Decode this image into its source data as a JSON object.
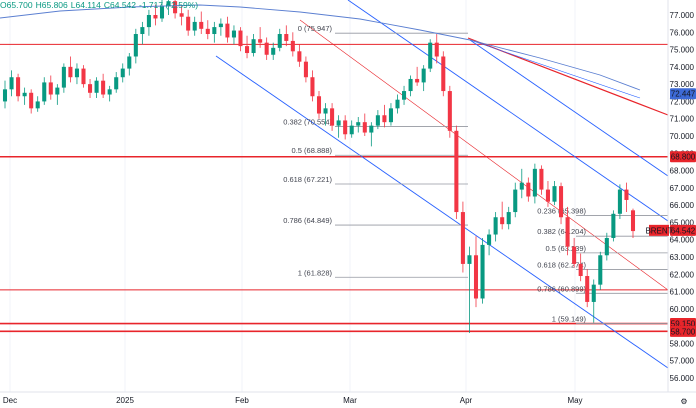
{
  "ohlc_bar": {
    "open": "O65.700",
    "high": "H65.806",
    "low": "L64.114",
    "close": "C64.542",
    "change": "-1.717 (-2.59%)"
  },
  "colors": {
    "up": "#089981",
    "down": "#f23645",
    "channel": "#2962ff",
    "level_red": "#e8252b",
    "ma": "#5b7fd1",
    "fib": "#9598a1",
    "axis_label_dark": "#131722",
    "price_tag_blue": "#3d6ad6"
  },
  "chart_data": {
    "type": "candlestick",
    "instrument_tag": "BRENT",
    "ylim": [
      55.5,
      77.5
    ],
    "y_ticks": [
      "77.000",
      "76.000",
      "75.000",
      "74.000",
      "73.000",
      "72.000",
      "71.000",
      "70.000",
      "69.000",
      "68.000",
      "67.000",
      "66.000",
      "65.000",
      "64.000",
      "63.000",
      "62.000",
      "61.000",
      "60.000",
      "59.000",
      "58.000",
      "57.000",
      "56.000"
    ],
    "x_ticks": [
      "Dec",
      "2025",
      "Feb",
      "Mar",
      "Apr",
      "May"
    ],
    "price_labels": [
      {
        "text": "72.447",
        "value": 72.447,
        "style": "blue"
      },
      {
        "text": "68.800",
        "value": 68.8,
        "style": "red"
      },
      {
        "text": "64.542",
        "value": 64.542,
        "style": "red"
      },
      {
        "text": "59.150",
        "value": 59.15,
        "style": "red"
      },
      {
        "text": "58.700",
        "value": 58.7,
        "style": "red"
      }
    ],
    "horizontal_levels": [
      75.3,
      68.8,
      59.15,
      58.7,
      61.1
    ],
    "fib_big": [
      {
        "label": "0 (75.947)",
        "value": 75.947
      },
      {
        "label": "0.382 (70.554)",
        "value": 70.554
      },
      {
        "label": "0.5 (68.888)",
        "value": 68.888
      },
      {
        "label": "0.618 (67.221)",
        "value": 67.221
      },
      {
        "label": "0.786 (64.849)",
        "value": 64.849
      },
      {
        "label": "1 (61.828)",
        "value": 61.828
      }
    ],
    "fib_small": [
      {
        "label": "0.236 (65.398)",
        "value": 65.398
      },
      {
        "label": "0.382 (64.204)",
        "value": 64.204
      },
      {
        "label": "0.5 (63.239)",
        "value": 63.239
      },
      {
        "label": "0.618 (62.274)",
        "value": 62.274
      },
      {
        "label": "0.786 (60.899)",
        "value": 60.899
      },
      {
        "label": "1 (59.149)",
        "value": 59.149
      }
    ],
    "candles": [
      [
        72.0,
        73.2,
        71.6,
        72.7
      ],
      [
        72.7,
        73.8,
        72.3,
        73.4
      ],
      [
        73.4,
        73.6,
        72.0,
        72.3
      ],
      [
        72.3,
        72.8,
        71.8,
        72.5
      ],
      [
        72.5,
        72.7,
        71.3,
        71.6
      ],
      [
        71.6,
        72.3,
        71.4,
        72.0
      ],
      [
        72.0,
        73.4,
        71.8,
        73.1
      ],
      [
        73.1,
        73.5,
        72.1,
        72.4
      ],
      [
        72.4,
        73.0,
        71.8,
        72.8
      ],
      [
        72.8,
        74.2,
        72.5,
        74.0
      ],
      [
        74.0,
        74.6,
        73.1,
        73.4
      ],
      [
        73.4,
        74.2,
        73.0,
        73.9
      ],
      [
        73.9,
        74.1,
        72.8,
        73.0
      ],
      [
        73.0,
        73.3,
        72.2,
        72.5
      ],
      [
        72.5,
        73.4,
        72.2,
        73.2
      ],
      [
        73.2,
        73.6,
        72.2,
        72.4
      ],
      [
        72.4,
        72.9,
        72.0,
        72.7
      ],
      [
        72.7,
        73.7,
        72.5,
        73.4
      ],
      [
        73.4,
        74.2,
        73.1,
        73.9
      ],
      [
        73.9,
        74.8,
        73.5,
        74.6
      ],
      [
        74.6,
        76.2,
        74.2,
        75.9
      ],
      [
        75.9,
        76.6,
        75.3,
        76.3
      ],
      [
        76.3,
        77.3,
        75.8,
        77.0
      ],
      [
        77.0,
        77.6,
        76.4,
        76.8
      ],
      [
        76.8,
        77.9,
        76.6,
        77.5
      ],
      [
        77.5,
        78.2,
        77.0,
        77.8
      ],
      [
        77.8,
        78.0,
        76.8,
        77.1
      ],
      [
        77.1,
        77.6,
        76.4,
        76.9
      ],
      [
        76.9,
        77.3,
        75.8,
        76.1
      ],
      [
        76.1,
        76.9,
        75.8,
        76.6
      ],
      [
        76.6,
        77.2,
        75.9,
        76.2
      ],
      [
        76.2,
        76.7,
        75.6,
        75.9
      ],
      [
        75.9,
        76.6,
        75.4,
        76.3
      ],
      [
        76.3,
        76.8,
        75.8,
        76.5
      ],
      [
        76.5,
        76.9,
        75.4,
        75.7
      ],
      [
        75.7,
        76.4,
        75.3,
        76.1
      ],
      [
        76.1,
        76.3,
        74.9,
        75.2
      ],
      [
        75.2,
        75.8,
        74.5,
        74.8
      ],
      [
        74.8,
        75.9,
        74.6,
        75.6
      ],
      [
        75.6,
        76.3,
        75.1,
        75.4
      ],
      [
        75.4,
        75.7,
        74.4,
        74.7
      ],
      [
        74.7,
        75.4,
        74.4,
        75.1
      ],
      [
        75.1,
        76.2,
        74.9,
        75.9
      ],
      [
        75.9,
        76.4,
        75.2,
        75.5
      ],
      [
        75.5,
        76.0,
        74.6,
        74.9
      ],
      [
        74.9,
        75.3,
        74.0,
        74.3
      ],
      [
        74.3,
        74.6,
        73.1,
        73.4
      ],
      [
        73.4,
        73.8,
        72.0,
        72.3
      ],
      [
        72.3,
        72.6,
        71.0,
        71.3
      ],
      [
        71.3,
        71.9,
        70.6,
        71.6
      ],
      [
        71.6,
        71.9,
        70.3,
        70.6
      ],
      [
        70.6,
        71.2,
        69.9,
        70.9
      ],
      [
        70.9,
        71.2,
        69.8,
        70.1
      ],
      [
        70.1,
        70.9,
        69.9,
        70.6
      ],
      [
        70.6,
        71.1,
        70.2,
        70.8
      ],
      [
        70.8,
        71.3,
        70.0,
        70.2
      ],
      [
        70.2,
        70.8,
        69.4,
        70.6
      ],
      [
        70.6,
        71.5,
        70.4,
        71.2
      ],
      [
        71.2,
        71.8,
        70.5,
        70.8
      ],
      [
        70.8,
        71.9,
        70.6,
        71.6
      ],
      [
        71.6,
        72.4,
        71.3,
        72.1
      ],
      [
        72.1,
        72.9,
        71.8,
        72.6
      ],
      [
        72.6,
        73.5,
        72.3,
        73.3
      ],
      [
        73.3,
        74.0,
        72.9,
        73.1
      ],
      [
        73.1,
        74.1,
        72.6,
        73.9
      ],
      [
        73.9,
        75.6,
        73.7,
        75.4
      ],
      [
        75.4,
        75.9,
        74.2,
        74.6
      ],
      [
        74.6,
        74.9,
        72.3,
        72.6
      ],
      [
        72.6,
        72.9,
        69.9,
        70.3
      ],
      [
        70.3,
        70.6,
        65.2,
        65.6
      ],
      [
        65.6,
        66.2,
        62.1,
        62.6
      ],
      [
        62.6,
        63.6,
        58.6,
        63.1
      ],
      [
        63.1,
        64.2,
        60.1,
        60.6
      ],
      [
        60.6,
        64.1,
        60.3,
        63.7
      ],
      [
        63.7,
        64.6,
        63.1,
        64.3
      ],
      [
        64.3,
        65.6,
        63.9,
        65.3
      ],
      [
        65.3,
        66.2,
        64.6,
        64.9
      ],
      [
        64.9,
        65.9,
        64.6,
        65.6
      ],
      [
        65.6,
        67.3,
        65.3,
        66.9
      ],
      [
        66.9,
        68.1,
        66.4,
        67.3
      ],
      [
        67.3,
        67.6,
        66.2,
        66.5
      ],
      [
        66.5,
        68.4,
        66.1,
        68.1
      ],
      [
        68.1,
        68.3,
        66.6,
        66.9
      ],
      [
        66.9,
        67.4,
        65.9,
        66.2
      ],
      [
        66.2,
        67.4,
        66.0,
        67.1
      ],
      [
        67.1,
        67.3,
        64.9,
        65.3
      ],
      [
        65.3,
        65.9,
        63.1,
        63.6
      ],
      [
        63.6,
        64.1,
        62.4,
        62.6
      ],
      [
        62.6,
        63.2,
        61.6,
        61.9
      ],
      [
        61.9,
        62.3,
        60.1,
        60.4
      ],
      [
        60.4,
        61.7,
        59.2,
        61.4
      ],
      [
        61.4,
        63.3,
        61.1,
        63.1
      ],
      [
        63.1,
        64.4,
        62.8,
        64.1
      ],
      [
        64.1,
        65.7,
        63.9,
        65.5
      ],
      [
        65.5,
        67.2,
        65.2,
        66.9
      ],
      [
        66.9,
        67.3,
        65.6,
        66.3
      ],
      [
        65.7,
        65.8,
        64.1,
        64.5
      ]
    ]
  }
}
